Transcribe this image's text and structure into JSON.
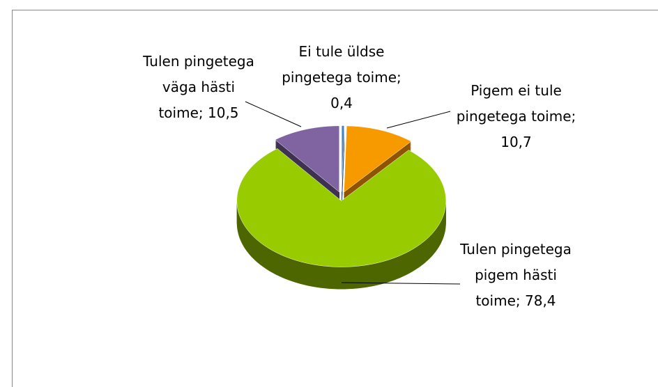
{
  "chart_data": {
    "type": "pie",
    "categories": [
      "Ei tule üldse pingetega toime",
      "Pigem ei tule pingetega toime",
      "Tulen pingetega pigem hästi toime",
      "Tulen pingetega väga hästi toime"
    ],
    "values": [
      0.4,
      10.7,
      78.4,
      10.5
    ],
    "value_labels": [
      "0,4",
      "10,7",
      "78,4",
      "10,5"
    ],
    "label_separator": "; ",
    "colors": [
      "#4f81bd",
      "#f79a00",
      "#99cc00",
      "#8064a2"
    ],
    "side_colors": [
      "#2c4d75",
      "#8f5400",
      "#4d6600",
      "#3f3151"
    ]
  }
}
